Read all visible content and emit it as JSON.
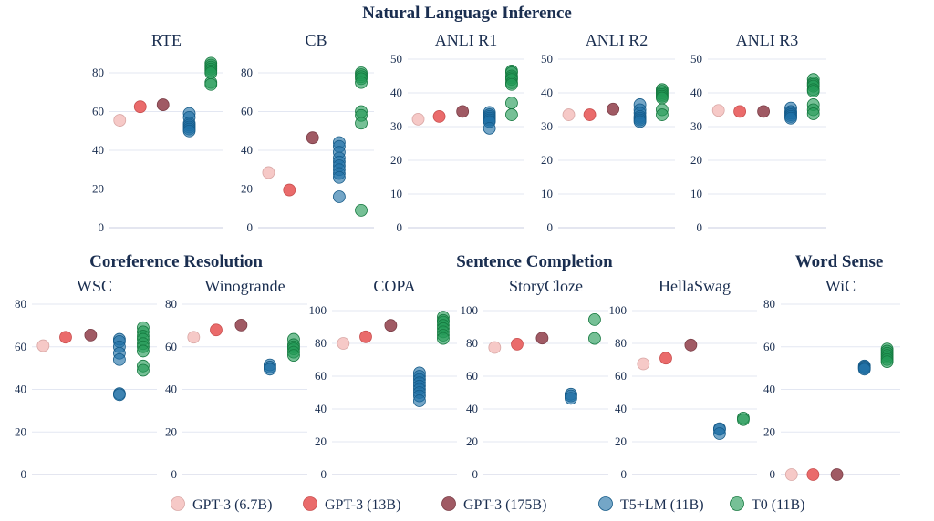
{
  "figure": {
    "group_titles": {
      "nli": "Natural Language Inference",
      "coref": "Coreference Resolution",
      "completion": "Sentence Completion",
      "wordsense": "Word Sense"
    },
    "legend": [
      {
        "label": "GPT-3 (6.7B)",
        "color": "#f6c9c7"
      },
      {
        "label": "GPT-3 (13B)",
        "color": "#ea6b6b"
      },
      {
        "label": "GPT-3 (175B)",
        "color": "#a05a64"
      },
      {
        "label": "T5+LM (11B)",
        "color": "#1f6fa5"
      },
      {
        "label": "T0 (11B)",
        "color": "#229a55"
      }
    ]
  },
  "chart_data": [
    {
      "type": "scatter",
      "title": "RTE",
      "ylim": [
        0,
        80
      ],
      "yticks": [
        0,
        20,
        40,
        60,
        80
      ],
      "series": [
        {
          "name": "GPT-3 (6.7B)",
          "values": [
            55.5
          ]
        },
        {
          "name": "GPT-3 (13B)",
          "values": [
            62.5
          ]
        },
        {
          "name": "GPT-3 (175B)",
          "values": [
            63.5
          ]
        },
        {
          "name": "T5+LM (11B)",
          "values": [
            59,
            57,
            54,
            53,
            52,
            51,
            50
          ]
        },
        {
          "name": "T0 (11B)",
          "values": [
            85,
            84,
            83,
            82,
            81,
            80,
            75,
            74
          ]
        }
      ]
    },
    {
      "type": "scatter",
      "title": "CB",
      "ylim": [
        0,
        80
      ],
      "yticks": [
        0,
        20,
        40,
        60,
        80
      ],
      "series": [
        {
          "name": "GPT-3 (6.7B)",
          "values": [
            28.5
          ]
        },
        {
          "name": "GPT-3 (13B)",
          "values": [
            19.5
          ]
        },
        {
          "name": "GPT-3 (175B)",
          "values": [
            46.5
          ]
        },
        {
          "name": "T5+LM (11B)",
          "values": [
            44,
            42,
            39,
            36,
            34,
            32,
            30,
            28,
            26,
            16
          ]
        },
        {
          "name": "T0 (11B)",
          "values": [
            80,
            79,
            78,
            77,
            75,
            60,
            58,
            54,
            9
          ]
        }
      ]
    },
    {
      "type": "scatter",
      "title": "ANLI R1",
      "ylim": [
        0,
        50
      ],
      "yticks": [
        0,
        10,
        20,
        30,
        40,
        50
      ],
      "series": [
        {
          "name": "GPT-3 (6.7B)",
          "values": [
            32.2
          ]
        },
        {
          "name": "GPT-3 (13B)",
          "values": [
            33
          ]
        },
        {
          "name": "GPT-3 (175B)",
          "values": [
            34.5
          ]
        },
        {
          "name": "T5+LM (11B)",
          "values": [
            34.2,
            33.5,
            33,
            32.5,
            32,
            31.5,
            29.5
          ]
        },
        {
          "name": "T0 (11B)",
          "values": [
            46.5,
            46,
            45,
            44.5,
            44,
            43,
            42.5,
            37,
            33.5
          ]
        }
      ]
    },
    {
      "type": "scatter",
      "title": "ANLI R2",
      "ylim": [
        0,
        50
      ],
      "yticks": [
        0,
        10,
        20,
        30,
        40,
        50
      ],
      "series": [
        {
          "name": "GPT-3 (6.7B)",
          "values": [
            33.5
          ]
        },
        {
          "name": "GPT-3 (13B)",
          "values": [
            33.5
          ]
        },
        {
          "name": "GPT-3 (175B)",
          "values": [
            35.2
          ]
        },
        {
          "name": "T5+LM (11B)",
          "values": [
            36.5,
            35,
            34,
            33,
            32.5,
            32,
            31.5
          ]
        },
        {
          "name": "T0 (11B)",
          "values": [
            41,
            40.5,
            40,
            39.5,
            39,
            38.5,
            35,
            33.5
          ]
        }
      ]
    },
    {
      "type": "scatter",
      "title": "ANLI R3",
      "ylim": [
        0,
        50
      ],
      "yticks": [
        0,
        10,
        20,
        30,
        40,
        50
      ],
      "series": [
        {
          "name": "GPT-3 (6.7B)",
          "values": [
            34.8
          ]
        },
        {
          "name": "GPT-3 (13B)",
          "values": [
            34.5
          ]
        },
        {
          "name": "GPT-3 (175B)",
          "values": [
            34.5
          ]
        },
        {
          "name": "T5+LM (11B)",
          "values": [
            35.5,
            34.5,
            34,
            33.5,
            33,
            32.5
          ]
        },
        {
          "name": "T0 (11B)",
          "values": [
            44,
            43,
            42.5,
            42,
            41,
            40.5,
            36.5,
            35,
            33.8
          ]
        }
      ]
    },
    {
      "type": "scatter",
      "title": "WSC",
      "ylim": [
        0,
        80
      ],
      "yticks": [
        0,
        20,
        40,
        60,
        80
      ],
      "series": [
        {
          "name": "GPT-3 (6.7B)",
          "values": [
            60.5
          ]
        },
        {
          "name": "GPT-3 (13B)",
          "values": [
            64.5
          ]
        },
        {
          "name": "GPT-3 (175B)",
          "values": [
            65.5
          ]
        },
        {
          "name": "T5+LM (11B)",
          "values": [
            63.5,
            62.5,
            60,
            57,
            54,
            38,
            37.5
          ]
        },
        {
          "name": "T0 (11B)",
          "values": [
            69,
            67,
            65,
            63.5,
            61.5,
            60,
            58,
            51,
            49
          ]
        }
      ]
    },
    {
      "type": "scatter",
      "title": "Winogrande",
      "ylim": [
        0,
        80
      ],
      "yticks": [
        0,
        20,
        40,
        60,
        80
      ],
      "series": [
        {
          "name": "GPT-3 (6.7B)",
          "values": [
            64.5
          ]
        },
        {
          "name": "GPT-3 (13B)",
          "values": [
            67.9
          ]
        },
        {
          "name": "GPT-3 (175B)",
          "values": [
            70.2
          ]
        },
        {
          "name": "T5+LM (11B)",
          "values": [
            51.5,
            50.5,
            49.5
          ]
        },
        {
          "name": "T0 (11B)",
          "values": [
            63.5,
            61,
            60,
            59,
            57.5,
            56
          ]
        }
      ]
    },
    {
      "type": "scatter",
      "title": "COPA",
      "ylim": [
        0,
        100
      ],
      "yticks": [
        0,
        20,
        40,
        60,
        80,
        100
      ],
      "series": [
        {
          "name": "GPT-3 (6.7B)",
          "values": [
            80
          ]
        },
        {
          "name": "GPT-3 (13B)",
          "values": [
            84
          ]
        },
        {
          "name": "GPT-3 (175B)",
          "values": [
            91
          ]
        },
        {
          "name": "T5+LM (11B)",
          "values": [
            62,
            60,
            58,
            56,
            54,
            52,
            50,
            48,
            45
          ]
        },
        {
          "name": "T0 (11B)",
          "values": [
            96,
            94,
            93,
            91,
            89,
            87,
            85,
            83
          ]
        }
      ]
    },
    {
      "type": "scatter",
      "title": "StoryCloze",
      "ylim": [
        0,
        100
      ],
      "yticks": [
        0,
        20,
        40,
        60,
        80,
        100
      ],
      "series": [
        {
          "name": "GPT-3 (6.7B)",
          "values": [
            77.5
          ]
        },
        {
          "name": "GPT-3 (13B)",
          "values": [
            79.5
          ]
        },
        {
          "name": "GPT-3 (175B)",
          "values": [
            83.2
          ]
        },
        {
          "name": "T5+LM (11B)",
          "values": [
            49,
            48,
            46.5
          ]
        },
        {
          "name": "T0 (11B)",
          "values": [
            94.5,
            83
          ]
        }
      ]
    },
    {
      "type": "scatter",
      "title": "HellaSwag",
      "ylim": [
        0,
        100
      ],
      "yticks": [
        0,
        20,
        40,
        60,
        80,
        100
      ],
      "series": [
        {
          "name": "GPT-3 (6.7B)",
          "values": [
            67.5
          ]
        },
        {
          "name": "GPT-3 (13B)",
          "values": [
            71
          ]
        },
        {
          "name": "GPT-3 (175B)",
          "values": [
            79
          ]
        },
        {
          "name": "T5+LM (11B)",
          "values": [
            28,
            27.5,
            25
          ]
        },
        {
          "name": "T0 (11B)",
          "values": [
            34.5,
            33.5
          ]
        }
      ]
    },
    {
      "type": "scatter",
      "title": "WiC",
      "ylim": [
        0,
        80
      ],
      "yticks": [
        0,
        20,
        40,
        60,
        80
      ],
      "series": [
        {
          "name": "GPT-3 (6.7B)",
          "values": [
            0
          ]
        },
        {
          "name": "GPT-3 (13B)",
          "values": [
            0
          ]
        },
        {
          "name": "GPT-3 (175B)",
          "values": [
            0
          ]
        },
        {
          "name": "T5+LM (11B)",
          "values": [
            51,
            50.5,
            50,
            49.5
          ]
        },
        {
          "name": "T0 (11B)",
          "values": [
            59,
            58,
            57,
            56,
            55,
            54,
            53
          ]
        }
      ]
    }
  ]
}
